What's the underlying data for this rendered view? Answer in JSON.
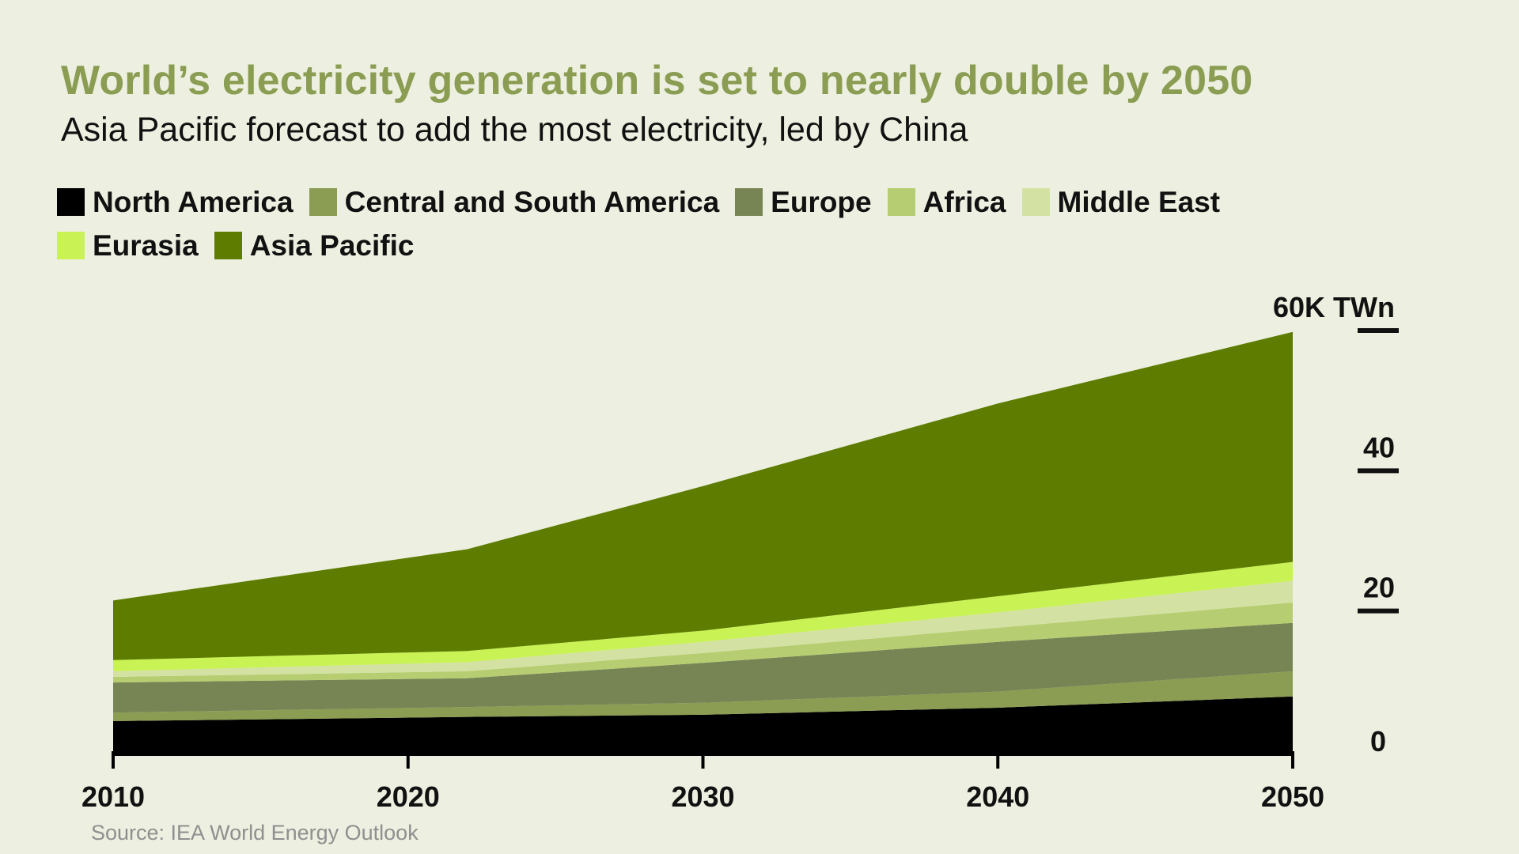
{
  "header": {
    "title": "World’s electricity generation is set to nearly double by 2050",
    "subtitle": "Asia Pacific forecast to add the most electricity, led by China"
  },
  "source": "Source: IEA World Energy Outlook",
  "chart_data": {
    "type": "area",
    "stacked": true,
    "title": "World’s electricity generation is set to nearly double by 2050",
    "subtitle": "Asia Pacific forecast to add the most electricity, led by China",
    "x": [
      2010,
      2022,
      2030,
      2040,
      2050
    ],
    "x_ticks": [
      "2010",
      "2020",
      "2030",
      "2040",
      "2050"
    ],
    "y_ticks": [
      "0",
      "20",
      "40",
      "60K TWn"
    ],
    "y_tick_values": [
      0,
      20,
      40,
      60
    ],
    "ylim": [
      0,
      60
    ],
    "axis_position": "right",
    "legend_position": "top-left",
    "grid": false,
    "series": [
      {
        "name": "North America",
        "color": "#000000",
        "values": [
          4.3,
          4.9,
          5.2,
          6.2,
          7.8
        ]
      },
      {
        "name": "Central and South America",
        "color": "#8a9d52",
        "values": [
          1.2,
          1.4,
          1.7,
          2.3,
          3.6
        ]
      },
      {
        "name": "Europe",
        "color": "#778554",
        "values": [
          4.3,
          4.1,
          5.7,
          7.1,
          6.9
        ]
      },
      {
        "name": "Africa",
        "color": "#b7cd71",
        "values": [
          0.8,
          1.0,
          1.4,
          2.0,
          2.9
        ]
      },
      {
        "name": "Middle East",
        "color": "#d3e2a3",
        "values": [
          0.8,
          1.3,
          1.6,
          2.2,
          3.1
        ]
      },
      {
        "name": "Eurasia",
        "color": "#c9f255",
        "values": [
          1.6,
          1.6,
          1.6,
          2.3,
          2.7
        ]
      },
      {
        "name": "Asia Pacific",
        "color": "#5d7c00",
        "values": [
          8.5,
          14.5,
          20.6,
          27.5,
          32.8
        ]
      }
    ]
  }
}
